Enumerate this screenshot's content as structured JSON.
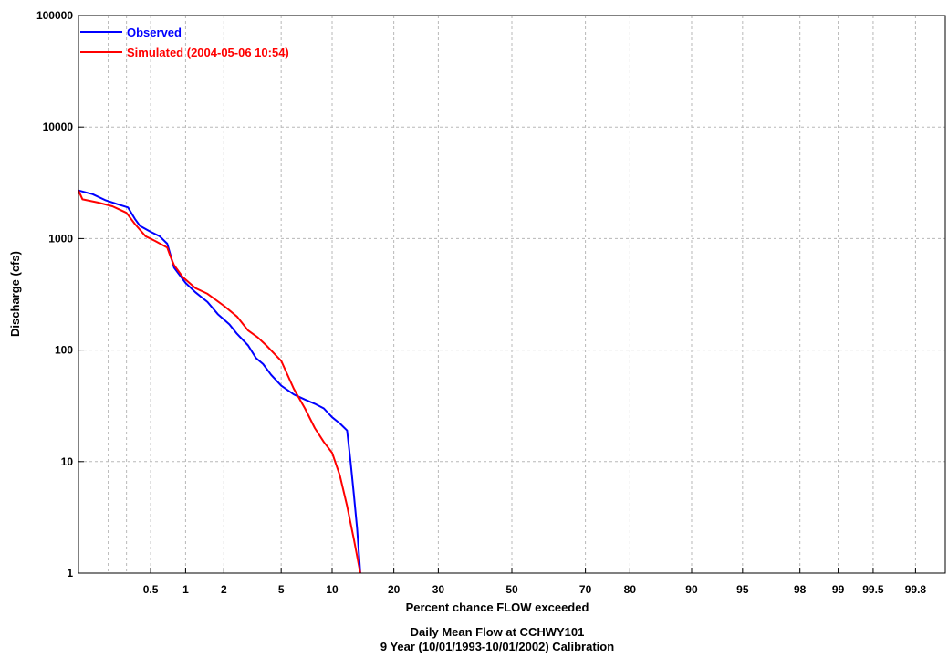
{
  "chart_data": {
    "type": "line",
    "title": "Daily Mean Flow at CCHWY101",
    "subtitle": "9 Year (10/01/1993-10/01/2002) Calibration",
    "xlabel": "Percent chance FLOW exceeded",
    "ylabel": "Discharge (cfs)",
    "xscale": "normal-probability",
    "yscale": "log",
    "xlim": [
      0.1,
      99.9
    ],
    "ylim": [
      1,
      100000
    ],
    "grid": true,
    "legend_position": "top-left",
    "x_ticks": [
      0.5,
      1,
      2,
      5,
      10,
      20,
      30,
      50,
      70,
      80,
      90,
      95,
      98,
      99,
      99.5,
      99.8
    ],
    "x_tick_labels": [
      "0.5",
      "1",
      "2",
      "5",
      "10",
      "20",
      "30",
      "50",
      "70",
      "80",
      "90",
      "95",
      "98",
      "99",
      "99.5",
      "99.8"
    ],
    "y_ticks": [
      1,
      10,
      100,
      1000,
      10000,
      100000
    ],
    "y_tick_labels": [
      "1",
      "10",
      "100",
      "1000",
      "10000",
      "100000"
    ],
    "series": [
      {
        "name": "Observed",
        "color": "#0000ff",
        "points": [
          [
            0.1,
            2700
          ],
          [
            0.14,
            2500
          ],
          [
            0.19,
            2200
          ],
          [
            0.26,
            2000
          ],
          [
            0.31,
            1900
          ],
          [
            0.36,
            1500
          ],
          [
            0.4,
            1300
          ],
          [
            0.5,
            1150
          ],
          [
            0.6,
            1050
          ],
          [
            0.7,
            900
          ],
          [
            0.75,
            700
          ],
          [
            0.8,
            550
          ],
          [
            0.88,
            480
          ],
          [
            1.0,
            400
          ],
          [
            1.2,
            330
          ],
          [
            1.5,
            270
          ],
          [
            1.8,
            210
          ],
          [
            2.2,
            170
          ],
          [
            2.5,
            140
          ],
          [
            3.0,
            110
          ],
          [
            3.4,
            85
          ],
          [
            3.8,
            75
          ],
          [
            4.3,
            60
          ],
          [
            5.0,
            48
          ],
          [
            6.0,
            40
          ],
          [
            7.0,
            36
          ],
          [
            8.0,
            33
          ],
          [
            9.0,
            30
          ],
          [
            10.0,
            25
          ],
          [
            11.0,
            22
          ],
          [
            12.0,
            19
          ],
          [
            12.5,
            10
          ],
          [
            13.0,
            5
          ],
          [
            13.5,
            2.5
          ],
          [
            14.0,
            1
          ]
        ]
      },
      {
        "name": "Simulated (2004-05-06 10:54)",
        "color": "#ff0000",
        "points": [
          [
            0.1,
            2700
          ],
          [
            0.11,
            2250
          ],
          [
            0.16,
            2100
          ],
          [
            0.22,
            1950
          ],
          [
            0.3,
            1700
          ],
          [
            0.36,
            1350
          ],
          [
            0.45,
            1050
          ],
          [
            0.55,
            950
          ],
          [
            0.7,
            830
          ],
          [
            0.75,
            680
          ],
          [
            0.8,
            580
          ],
          [
            0.95,
            450
          ],
          [
            1.2,
            360
          ],
          [
            1.5,
            320
          ],
          [
            2.0,
            250
          ],
          [
            2.5,
            200
          ],
          [
            3.0,
            150
          ],
          [
            3.5,
            130
          ],
          [
            4.0,
            110
          ],
          [
            5.0,
            80
          ],
          [
            6.0,
            45
          ],
          [
            7.0,
            30
          ],
          [
            8.0,
            20
          ],
          [
            9.0,
            15
          ],
          [
            10.0,
            12
          ],
          [
            11.0,
            7.5
          ],
          [
            12.0,
            4
          ],
          [
            13.0,
            2
          ],
          [
            14.0,
            1
          ]
        ]
      }
    ]
  }
}
